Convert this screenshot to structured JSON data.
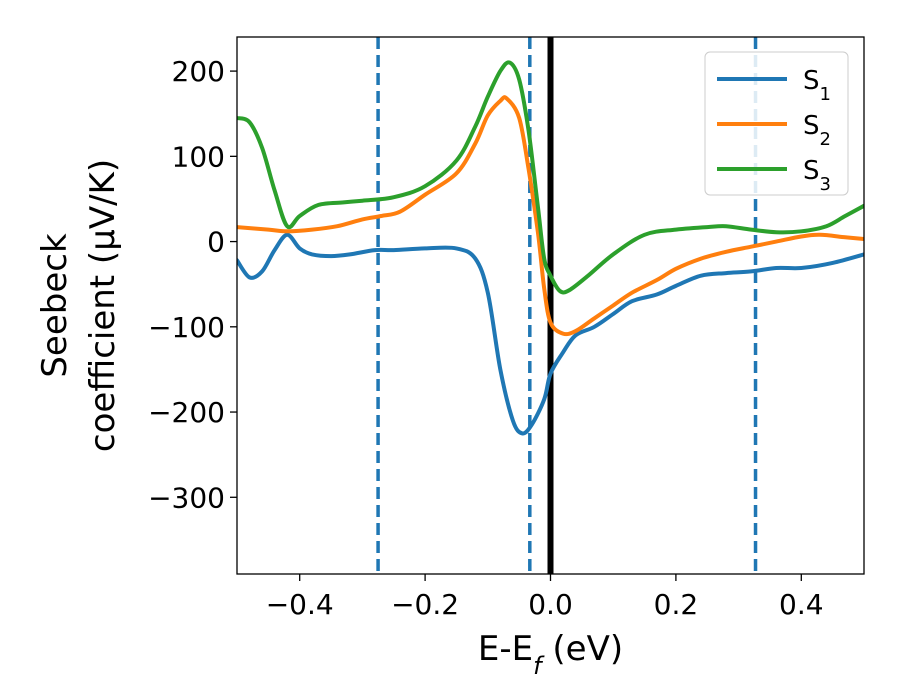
{
  "chart_data": {
    "type": "line",
    "xlabel": "E-E",
    "xlabel_sub": "f",
    "xlabel_unit": " (eV)",
    "ylabel_line1": "Seebeck",
    "ylabel_line2": "coefficient  (μV/K)",
    "xlim": [
      -0.5,
      0.5
    ],
    "ylim": [
      -390,
      240
    ],
    "xticks": [
      -0.4,
      -0.2,
      0.0,
      0.2,
      0.4
    ],
    "xtick_labels": [
      "−0.4",
      "−0.2",
      "0.0",
      "0.2",
      "0.4"
    ],
    "yticks": [
      200,
      100,
      0,
      -100,
      -200,
      -300
    ],
    "ytick_labels": [
      "200",
      "100",
      "0",
      "−100",
      "−200",
      "−300"
    ],
    "grid": false,
    "legend_position": "top-right",
    "vlines": [
      {
        "x": -0.275,
        "style": "dashed",
        "color": "#1f77b4"
      },
      {
        "x": -0.033,
        "style": "dashed",
        "color": "#1f77b4"
      },
      {
        "x": 0.0,
        "style": "solid",
        "color": "#000000"
      },
      {
        "x": 0.327,
        "style": "dashed",
        "color": "#1f77b4"
      }
    ],
    "series": [
      {
        "name": "S",
        "name_sub": "1",
        "color": "#1f77b4",
        "points": [
          [
            -0.5,
            -22
          ],
          [
            -0.48,
            -42
          ],
          [
            -0.46,
            -35
          ],
          [
            -0.44,
            -10
          ],
          [
            -0.42,
            8
          ],
          [
            -0.4,
            -8
          ],
          [
            -0.38,
            -15
          ],
          [
            -0.35,
            -17
          ],
          [
            -0.32,
            -15
          ],
          [
            -0.28,
            -10
          ],
          [
            -0.25,
            -10
          ],
          [
            -0.2,
            -8
          ],
          [
            -0.15,
            -8
          ],
          [
            -0.12,
            -20
          ],
          [
            -0.1,
            -60
          ],
          [
            -0.08,
            -150
          ],
          [
            -0.06,
            -210
          ],
          [
            -0.045,
            -225
          ],
          [
            -0.03,
            -215
          ],
          [
            -0.01,
            -185
          ],
          [
            0.0,
            -155
          ],
          [
            0.02,
            -130
          ],
          [
            0.04,
            -110
          ],
          [
            0.07,
            -100
          ],
          [
            0.1,
            -85
          ],
          [
            0.13,
            -70
          ],
          [
            0.17,
            -62
          ],
          [
            0.2,
            -52
          ],
          [
            0.24,
            -40
          ],
          [
            0.28,
            -37
          ],
          [
            0.32,
            -35
          ],
          [
            0.36,
            -31
          ],
          [
            0.4,
            -31
          ],
          [
            0.45,
            -25
          ],
          [
            0.5,
            -15
          ]
        ]
      },
      {
        "name": "S",
        "name_sub": "2",
        "color": "#ff7f0e",
        "points": [
          [
            -0.5,
            17
          ],
          [
            -0.45,
            14
          ],
          [
            -0.42,
            12
          ],
          [
            -0.38,
            14
          ],
          [
            -0.34,
            18
          ],
          [
            -0.3,
            26
          ],
          [
            -0.27,
            30
          ],
          [
            -0.24,
            35
          ],
          [
            -0.2,
            55
          ],
          [
            -0.15,
            80
          ],
          [
            -0.12,
            115
          ],
          [
            -0.1,
            148
          ],
          [
            -0.08,
            165
          ],
          [
            -0.07,
            168
          ],
          [
            -0.05,
            145
          ],
          [
            -0.035,
            85
          ],
          [
            -0.02,
            10
          ],
          [
            -0.01,
            -55
          ],
          [
            0.0,
            -95
          ],
          [
            0.02,
            -108
          ],
          [
            0.04,
            -105
          ],
          [
            0.07,
            -90
          ],
          [
            0.1,
            -75
          ],
          [
            0.13,
            -60
          ],
          [
            0.17,
            -45
          ],
          [
            0.2,
            -32
          ],
          [
            0.24,
            -20
          ],
          [
            0.28,
            -12
          ],
          [
            0.32,
            -6
          ],
          [
            0.36,
            0
          ],
          [
            0.4,
            6
          ],
          [
            0.43,
            8
          ],
          [
            0.47,
            5
          ],
          [
            0.5,
            3
          ]
        ]
      },
      {
        "name": "S",
        "name_sub": "3",
        "color": "#2ca02c",
        "points": [
          [
            -0.5,
            145
          ],
          [
            -0.48,
            140
          ],
          [
            -0.46,
            110
          ],
          [
            -0.44,
            60
          ],
          [
            -0.42,
            18
          ],
          [
            -0.4,
            30
          ],
          [
            -0.37,
            43
          ],
          [
            -0.33,
            46
          ],
          [
            -0.3,
            48
          ],
          [
            -0.25,
            52
          ],
          [
            -0.2,
            65
          ],
          [
            -0.15,
            95
          ],
          [
            -0.12,
            135
          ],
          [
            -0.1,
            170
          ],
          [
            -0.08,
            200
          ],
          [
            -0.065,
            210
          ],
          [
            -0.05,
            190
          ],
          [
            -0.035,
            130
          ],
          [
            -0.02,
            40
          ],
          [
            -0.01,
            -20
          ],
          [
            0.0,
            -40
          ],
          [
            0.015,
            -58
          ],
          [
            0.03,
            -57
          ],
          [
            0.06,
            -40
          ],
          [
            0.1,
            -15
          ],
          [
            0.15,
            8
          ],
          [
            0.2,
            14
          ],
          [
            0.25,
            17
          ],
          [
            0.28,
            18
          ],
          [
            0.32,
            14
          ],
          [
            0.36,
            11
          ],
          [
            0.4,
            12
          ],
          [
            0.44,
            18
          ],
          [
            0.47,
            30
          ],
          [
            0.5,
            42
          ]
        ]
      }
    ]
  }
}
